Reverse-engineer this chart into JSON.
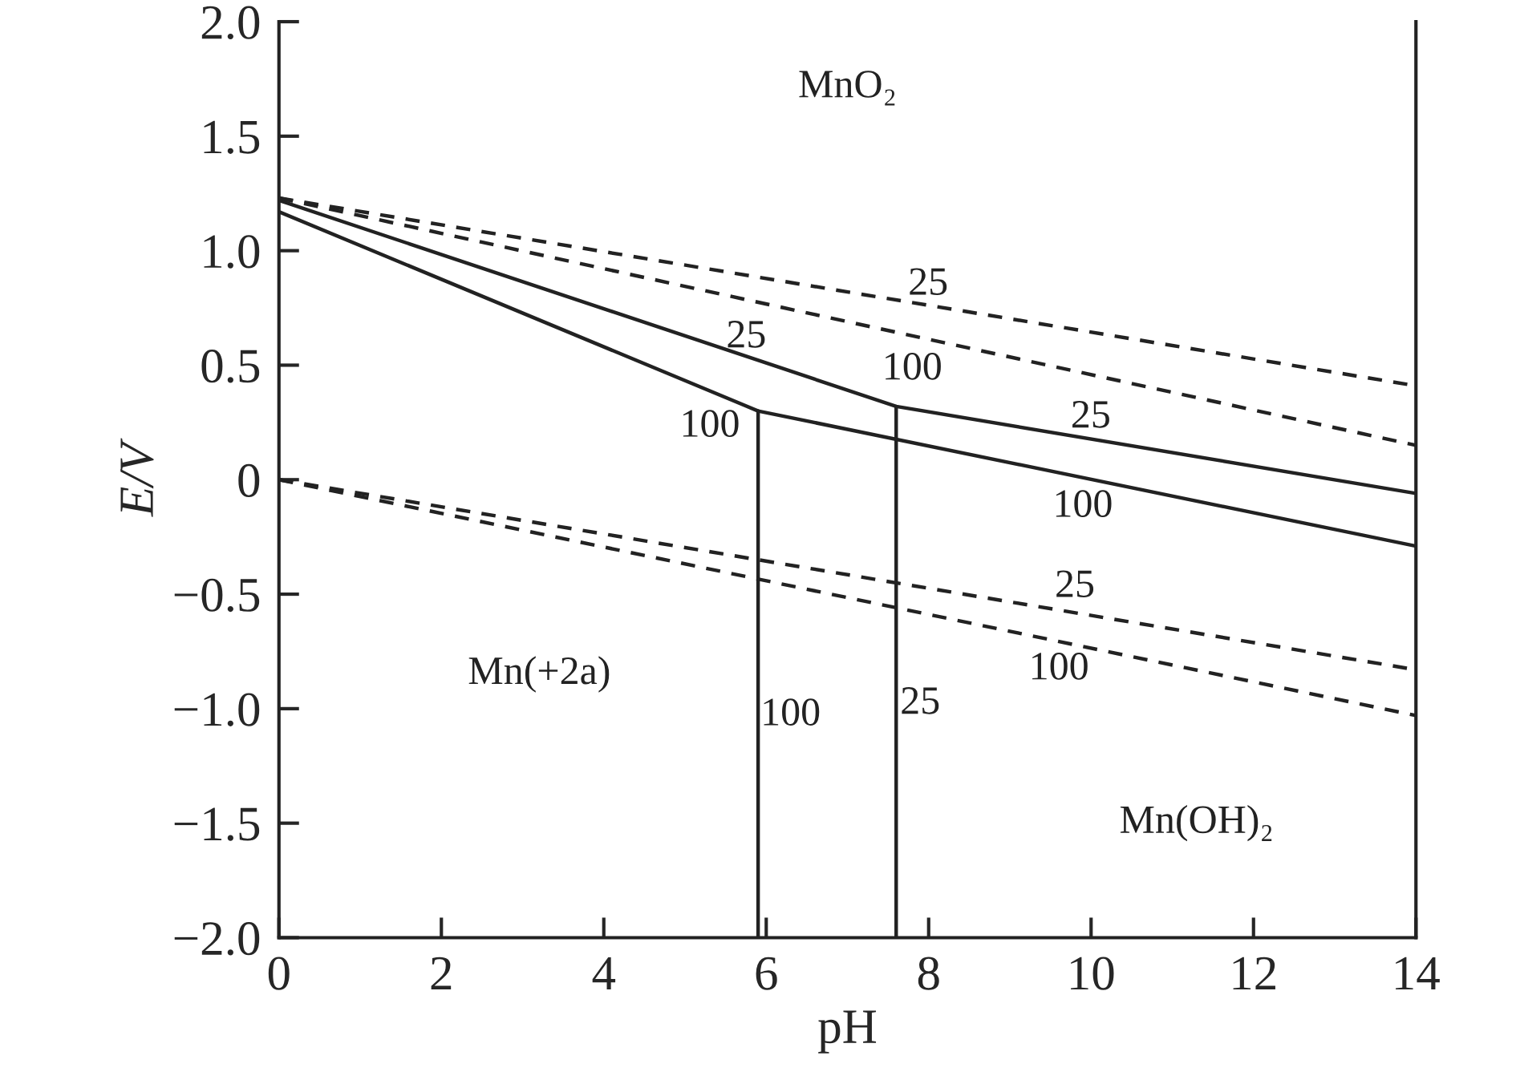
{
  "chart_data": {
    "type": "line",
    "xlabel": "pH",
    "ylabel": "E/V",
    "xlim": [
      0,
      14
    ],
    "xticks": [
      0,
      2,
      4,
      6,
      8,
      10,
      12,
      14
    ],
    "ylim": [
      -2.0,
      2.0
    ],
    "yticks": [
      {
        "value": -2.0,
        "label": "−2.0"
      },
      {
        "value": -1.5,
        "label": "−1.5"
      },
      {
        "value": -1.0,
        "label": "−1.0"
      },
      {
        "value": -0.5,
        "label": "−0.5"
      },
      0,
      0.5,
      {
        "value": 1,
        "label": "1.0"
      },
      1.5,
      {
        "value": 2,
        "label": "2.0"
      }
    ],
    "grid": false,
    "marker": "none",
    "series": [
      {
        "color": "#222222",
        "line_style": "solid",
        "x": [
          0,
          7.6,
          14
        ],
        "values": [
          1.22,
          0.32,
          -0.06
        ]
      },
      {
        "color": "#222222",
        "line_style": "solid",
        "x": [
          0,
          5.9,
          14
        ],
        "values": [
          1.17,
          0.3,
          -0.29
        ]
      },
      {
        "color": "#222222",
        "line_style": "solid",
        "x": [
          5.9,
          5.9
        ],
        "values": [
          -2.0,
          0.3
        ]
      },
      {
        "color": "#222222",
        "line_style": "solid",
        "x": [
          7.6,
          7.6
        ],
        "values": [
          -2.0,
          0.32
        ]
      },
      {
        "color": "#222222",
        "line_style": "dashed",
        "x": [
          0,
          14
        ],
        "values": [
          1.23,
          0.41
        ]
      },
      {
        "color": "#222222",
        "line_style": "dashed",
        "x": [
          0,
          14
        ],
        "values": [
          1.23,
          0.15
        ]
      },
      {
        "color": "#222222",
        "line_style": "dashed",
        "x": [
          0,
          14
        ],
        "values": [
          0,
          -0.83
        ]
      },
      {
        "color": "#222222",
        "line_style": "dashed",
        "x": [
          0,
          14
        ],
        "values": [
          0,
          -1.03
        ]
      }
    ],
    "annotations": [
      "MnO₂",
      "Mn(+2a)",
      "Mn(OH)₂",
      "25",
      "25",
      "100",
      "100",
      "25",
      "100",
      "25",
      "100",
      "100",
      "25"
    ]
  }
}
